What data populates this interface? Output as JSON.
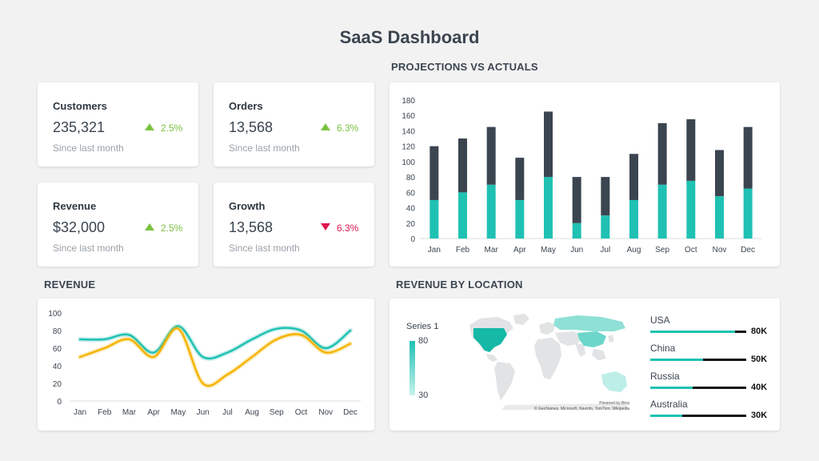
{
  "title": "SaaS Dashboard",
  "sections": {
    "projections": "PROJECTIONS VS ACTUALS",
    "revenue": "REVENUE",
    "location": "REVENUE BY LOCATION"
  },
  "kpis": [
    {
      "label": "Customers",
      "value": "235,321",
      "change": "2.5%",
      "direction": "up",
      "sub": "Since last month"
    },
    {
      "label": "Orders",
      "value": "13,568",
      "change": "6.3%",
      "direction": "up",
      "sub": "Since last month"
    },
    {
      "label": "Revenue",
      "value": "$32,000",
      "change": "2.5%",
      "direction": "up",
      "sub": "Since last month"
    },
    {
      "label": "Growth",
      "value": "13,568",
      "change": "6.3%",
      "direction": "down",
      "sub": "Since last month"
    }
  ],
  "colors": {
    "teal": "#1fc1b3",
    "dark": "#3b4550",
    "gold": "#f5b400",
    "up": "#7cc242",
    "down": "#e0174f"
  },
  "map": {
    "legend_title": "Series 1",
    "legend_max": "80",
    "legend_min": "30",
    "credit_line1": "Powered by Bing",
    "credit_line2": "© GeoNames, Microsoft, Navinfo, TomTom, Wikipedia",
    "locations": [
      {
        "name": "USA",
        "value_label": "80K",
        "value": 80
      },
      {
        "name": "China",
        "value_label": "50K",
        "value": 50
      },
      {
        "name": "Russia",
        "value_label": "40K",
        "value": 40
      },
      {
        "name": "Australia",
        "value_label": "30K",
        "value": 30
      }
    ]
  },
  "chart_data": [
    {
      "type": "bar",
      "stacked": true,
      "categories": [
        "Jan",
        "Feb",
        "Mar",
        "Apr",
        "May",
        "Jun",
        "Jul",
        "Aug",
        "Sep",
        "Oct",
        "Nov",
        "Dec"
      ],
      "series": [
        {
          "values": [
            50,
            60,
            70,
            50,
            80,
            20,
            30,
            50,
            70,
            75,
            55,
            65
          ],
          "color": "#1fc1b3"
        },
        {
          "values": [
            70,
            70,
            75,
            55,
            85,
            60,
            50,
            60,
            80,
            80,
            60,
            80
          ],
          "color": "#3b4550"
        }
      ],
      "yticks": [
        "0",
        "20",
        "40",
        "60",
        "80",
        "100",
        "120",
        "140",
        "160",
        "180"
      ],
      "ylim": [
        0,
        180
      ]
    },
    {
      "type": "line",
      "categories": [
        "Jan",
        "Feb",
        "Mar",
        "Apr",
        "May",
        "Jun",
        "Jul",
        "Aug",
        "Sep",
        "Oct",
        "Nov",
        "Dec"
      ],
      "series": [
        {
          "values": [
            70,
            70,
            75,
            55,
            85,
            50,
            55,
            70,
            82,
            80,
            60,
            80
          ],
          "color": "#1fc1b3"
        },
        {
          "values": [
            50,
            60,
            70,
            50,
            82,
            20,
            30,
            50,
            70,
            75,
            55,
            65
          ],
          "color": "#f5b400"
        }
      ],
      "yticks": [
        "0",
        "20",
        "40",
        "60",
        "80",
        "100"
      ],
      "ylim": [
        0,
        100
      ]
    }
  ]
}
